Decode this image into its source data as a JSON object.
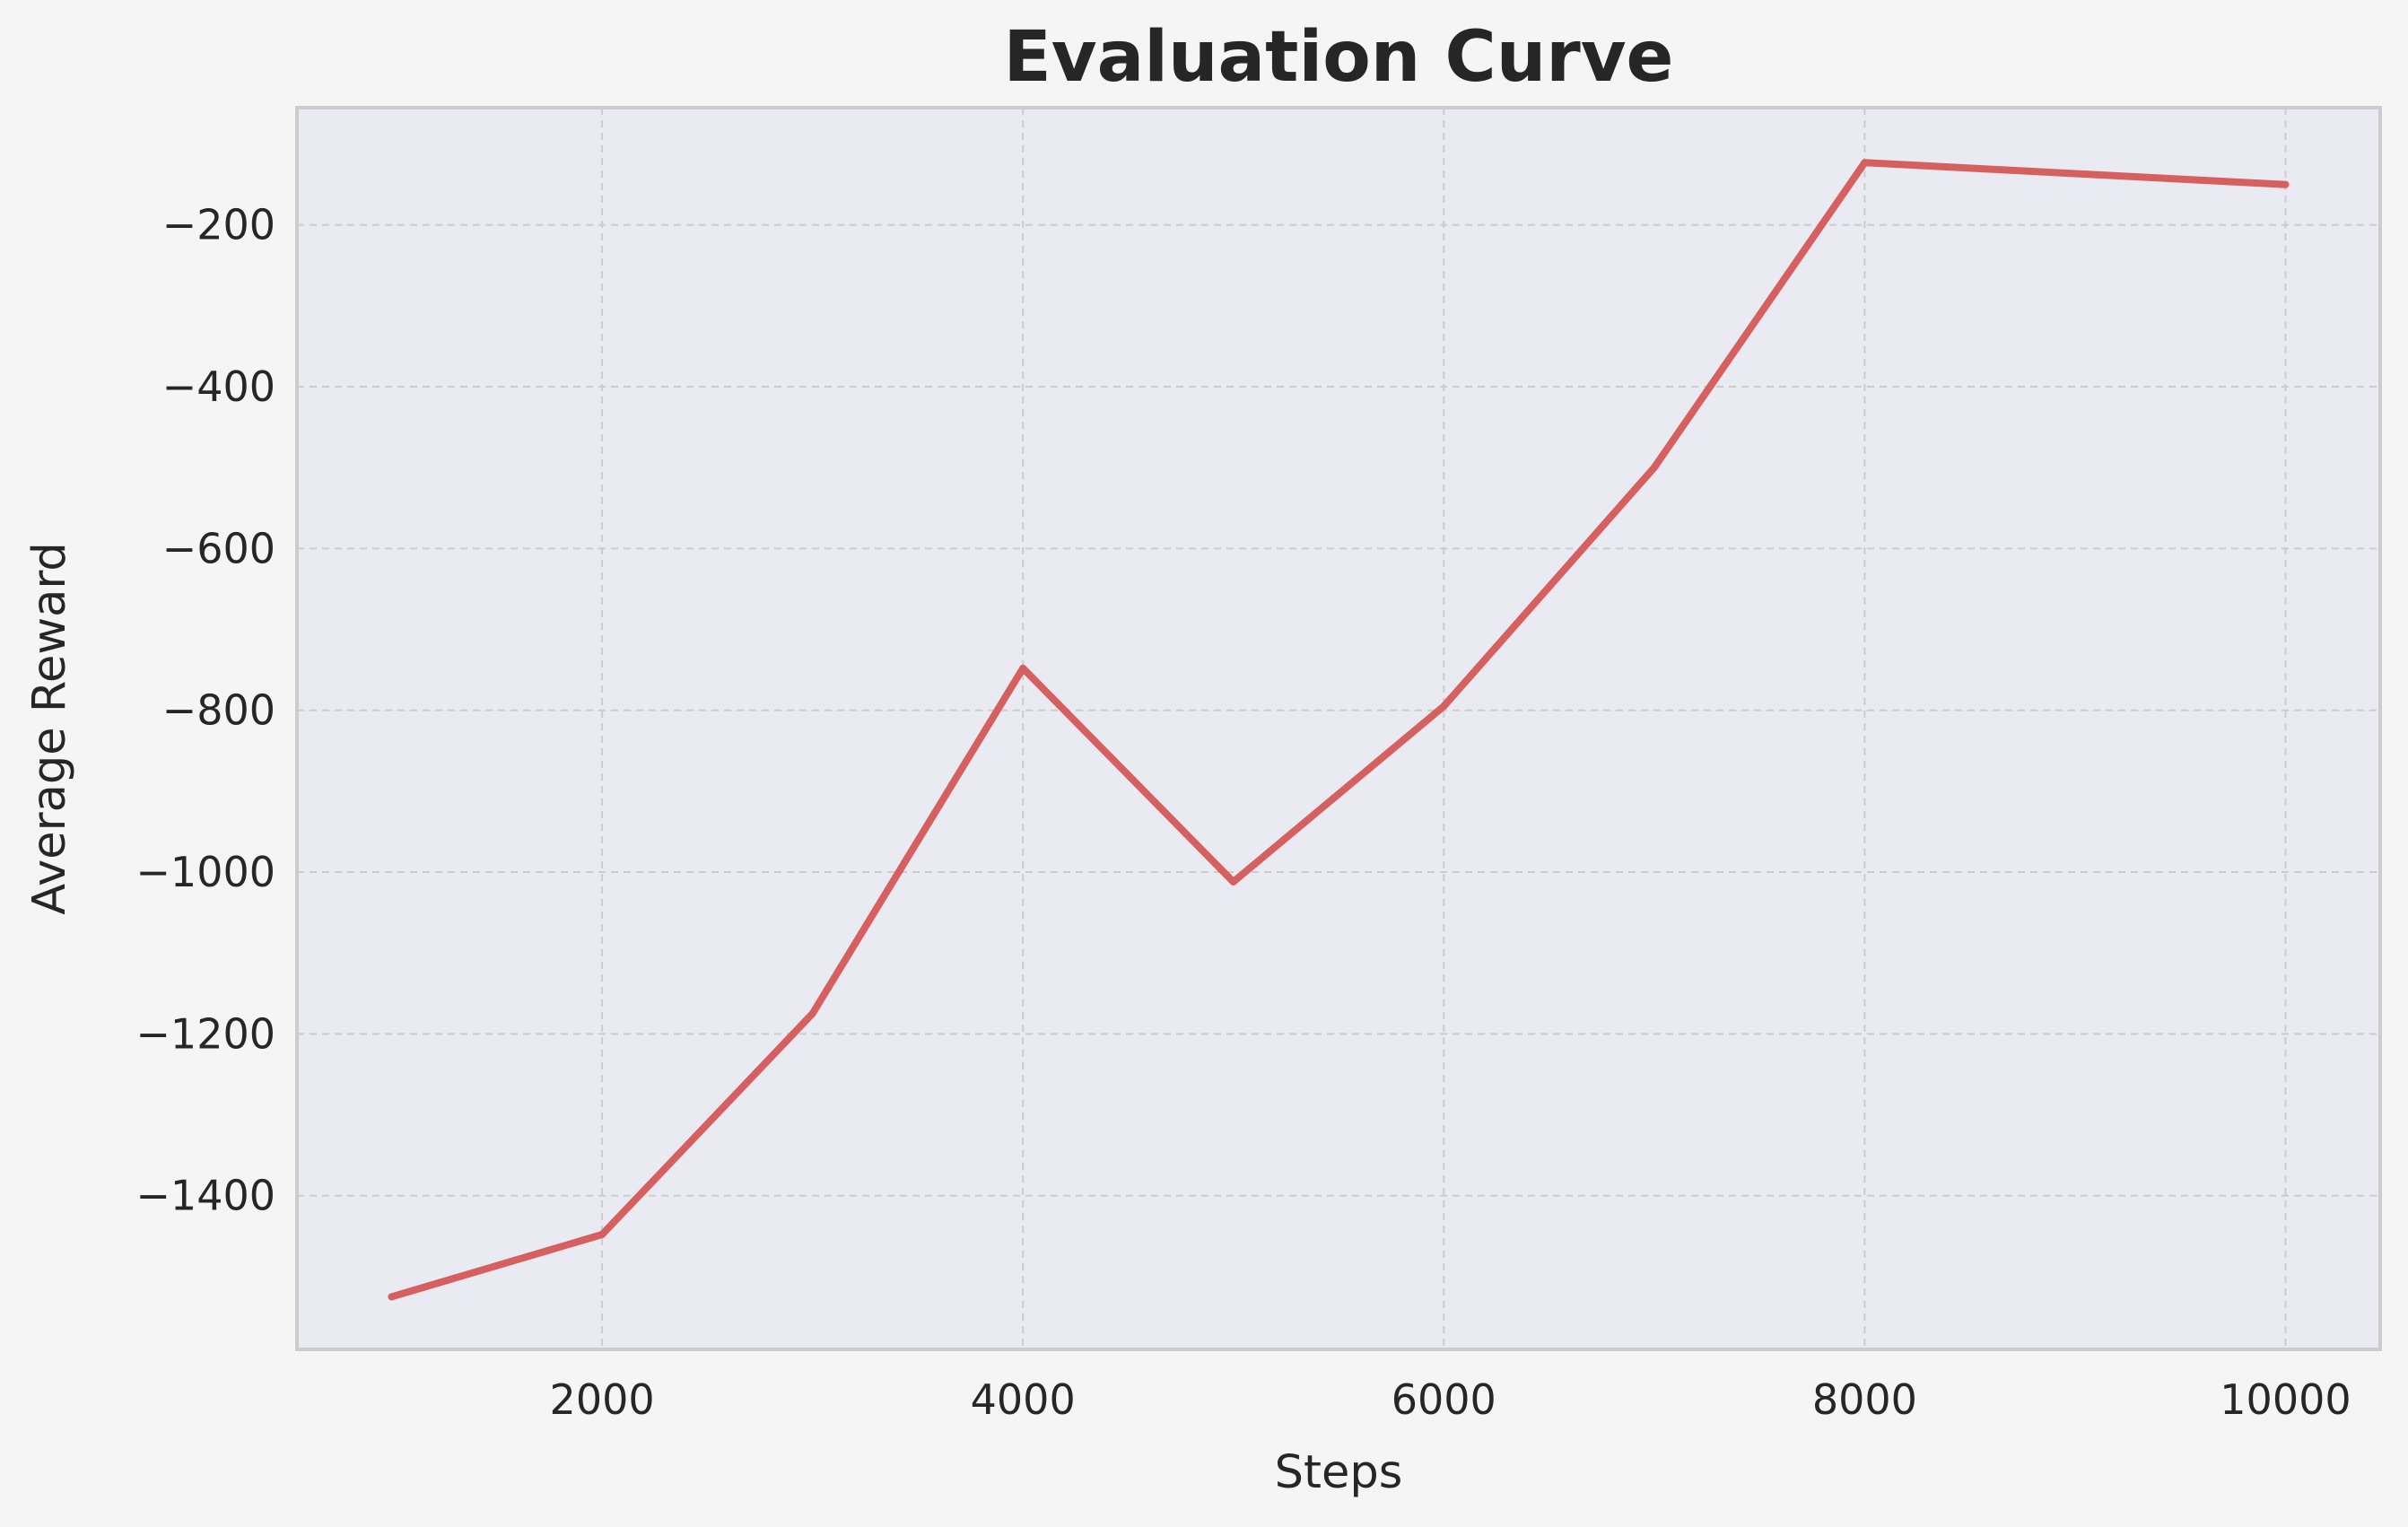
{
  "chart_data": {
    "type": "line",
    "title": "Evaluation Curve",
    "xlabel": "Steps",
    "ylabel": "Average Reward",
    "xlim": [
      550,
      10450
    ],
    "ylim": [
      -1590,
      -55
    ],
    "x_ticks": [
      2000,
      4000,
      6000,
      8000,
      10000
    ],
    "x_tick_labels": [
      "2000",
      "4000",
      "6000",
      "8000",
      "10000"
    ],
    "y_ticks": [
      -200,
      -400,
      -600,
      -800,
      -1000,
      -1200,
      -1400
    ],
    "y_tick_labels": [
      "−200",
      "−400",
      "−600",
      "−800",
      "−1000",
      "−1200",
      "−1400"
    ],
    "grid": true,
    "series": [
      {
        "color": "#d65f5f",
        "x": [
          1000,
          2000,
          3000,
          4000,
          5000,
          6000,
          7000,
          8000,
          10000
        ],
        "y": [
          -1525,
          -1448,
          -1175,
          -748,
          -1012,
          -795,
          -500,
          -123,
          -150
        ]
      }
    ]
  }
}
